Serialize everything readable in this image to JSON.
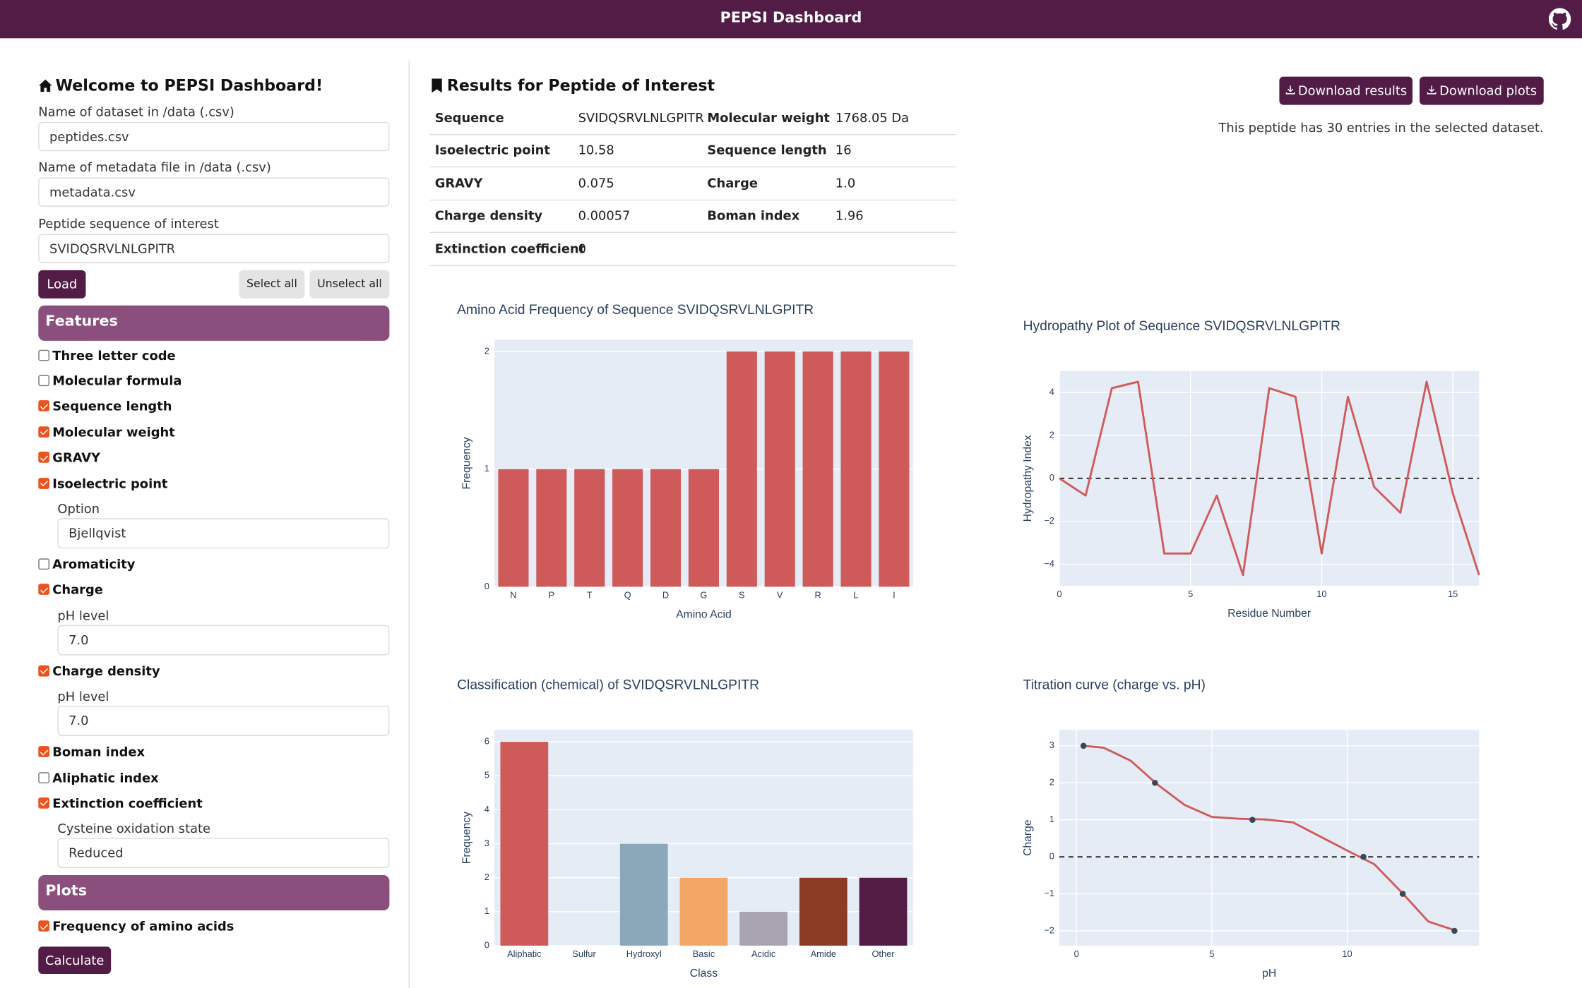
{
  "header": {
    "title": "PEPSI Dashboard"
  },
  "sidebar": {
    "title": "Welcome to PEPSI Dashboard!",
    "fields": [
      {
        "label": "Name of dataset in /data (.csv)",
        "value": "peptides.csv"
      },
      {
        "label": "Name of metadata file in /data (.csv)",
        "value": "metadata.csv"
      },
      {
        "label": "Peptide sequence of interest",
        "value": "SVIDQSRVLNLGPITR"
      }
    ],
    "buttons": {
      "load": "Load",
      "select_all": "Select all",
      "unselect_all": "Unselect all"
    },
    "features": {
      "title": "Features",
      "items": [
        {
          "label": "Three letter code",
          "checked": false
        },
        {
          "label": "Molecular formula",
          "checked": false
        },
        {
          "label": "Sequence length",
          "checked": true
        },
        {
          "label": "Molecular weight",
          "checked": true
        },
        {
          "label": "GRAVY",
          "checked": true
        },
        {
          "label": "Isoelectric point",
          "checked": true,
          "option": {
            "label": "Option",
            "value": "Bjellqvist"
          }
        },
        {
          "label": "Aromaticity",
          "checked": false
        },
        {
          "label": "Charge",
          "checked": true,
          "option": {
            "label": "pH level",
            "value": "7.0"
          }
        },
        {
          "label": "Charge density",
          "checked": true,
          "option": {
            "label": "pH level",
            "value": "7.0"
          }
        },
        {
          "label": "Boman index",
          "checked": true
        },
        {
          "label": "Aliphatic index",
          "checked": false
        },
        {
          "label": "Extinction coefficient",
          "checked": true,
          "option": {
            "label": "Cysteine oxidation state",
            "value": "Reduced"
          }
        }
      ]
    },
    "plots": {
      "title": "Plots",
      "items": [
        {
          "label": "Frequency of amino acids",
          "checked": true
        }
      ]
    },
    "calculate": "Calculate"
  },
  "results": {
    "title": "Results for Peptide of Interest",
    "buttons": [
      "Download results",
      "Download plots"
    ],
    "note": "This peptide has 30 entries in the selected dataset.",
    "table": {
      "rows": [
        [
          "Sequence",
          "SVIDQSRVLNLGPITR",
          "Molecular weight",
          "1768.05 Da"
        ],
        [
          "Isoelectric point",
          "10.58",
          "Sequence length",
          "16"
        ],
        [
          "GRAVY",
          "0.075",
          "Charge",
          "1.0"
        ],
        [
          "Charge density",
          "0.00057",
          "Boman index",
          "1.96"
        ],
        [
          "Extinction coefficient",
          "0"
        ]
      ]
    }
  },
  "charts": [
    {
      "type": "bar",
      "title": "Amino Acid Frequency of Sequence SVIDQSRVLNLGPITR",
      "x_label": "Amino Acid",
      "y_label": "Frequency",
      "categories": [
        "N",
        "P",
        "T",
        "Q",
        "D",
        "G",
        "S",
        "V",
        "R",
        "L",
        "I"
      ],
      "values": [
        1,
        1,
        1,
        1,
        1,
        1,
        2,
        2,
        2,
        2,
        2
      ],
      "color": "#cf5a5a",
      "ylim": [
        0,
        2.1
      ],
      "yticks": [
        0,
        1,
        2
      ],
      "grid": true
    },
    {
      "type": "line",
      "title": "Hydropathy Plot of Sequence SVIDQSRVLNLGPITR",
      "x_label": "Residue Number",
      "y_label": "Hydropathy Index",
      "series": [
        {
          "mode": "lines",
          "color": "#cf5a5a",
          "x": [
            0,
            1,
            2,
            3,
            4,
            5,
            6,
            7,
            8,
            9,
            10,
            11,
            12,
            13,
            14,
            15,
            16
          ],
          "values": [
            0,
            -0.8,
            4.2,
            4.5,
            -3.5,
            -3.5,
            -0.8,
            -4.5,
            4.2,
            3.8,
            -3.5,
            3.8,
            -0.4,
            -1.6,
            4.5,
            -0.7,
            -4.5
          ]
        }
      ],
      "xlim": [
        0,
        16
      ],
      "ylim": [
        -5,
        5
      ],
      "xticks": [
        0,
        5,
        10,
        15
      ],
      "yticks": [
        {
          "value": -4,
          "label": "−4"
        },
        {
          "value": -2,
          "label": "−2"
        },
        0,
        2,
        4
      ],
      "reference_line": 0,
      "grid": true
    },
    {
      "type": "bar",
      "title": "Classification (chemical) of SVIDQSRVLNLGPITR",
      "x_label": "Class",
      "y_label": "Frequency",
      "categories": [
        "Aliphatic",
        "Sulfur",
        "Hydroxyl",
        "Basic",
        "Acidic",
        "Amide",
        "Other"
      ],
      "values": [
        6,
        0,
        3,
        2,
        1,
        2,
        2
      ],
      "colors": [
        "#cf5a5a",
        null,
        "#8aa8ba",
        "#f2a766",
        "#aaa3b1",
        "#8c3b24",
        "#521c44"
      ],
      "ylim": [
        0,
        6.35
      ],
      "yticks": [
        0,
        1,
        2,
        3,
        4,
        5,
        6
      ],
      "grid": true
    },
    {
      "type": "line",
      "title": "Titration curve (charge vs. pH)",
      "x_label": "pH",
      "y_label": "Charge",
      "series": [
        {
          "mode": "lines",
          "color": "#cf5a5a",
          "x": [
            0.25,
            1,
            2,
            3,
            4,
            5,
            6,
            7,
            8,
            9,
            10,
            11,
            12,
            13,
            14
          ],
          "values": [
            3.0,
            2.95,
            2.6,
            1.95,
            1.4,
            1.08,
            1.03,
            1.01,
            0.93,
            0.55,
            0.17,
            -0.2,
            -0.95,
            -1.75,
            -1.99
          ]
        },
        {
          "mode": "markers",
          "color": "#3b4658",
          "x": [
            0.26,
            2.9,
            6.5,
            10.6,
            12.05,
            13.96
          ],
          "values": [
            3,
            2,
            1,
            0,
            -1,
            -2
          ]
        }
      ],
      "xlim": [
        -0.63,
        14.87
      ],
      "ylim": [
        -2.4,
        3.43
      ],
      "xticks": [
        0,
        5,
        10
      ],
      "yticks": [
        {
          "value": -2,
          "label": "−2"
        },
        {
          "value": -1,
          "label": "−1"
        },
        0,
        1,
        2,
        3
      ],
      "reference_line": 0,
      "grid": true
    }
  ]
}
